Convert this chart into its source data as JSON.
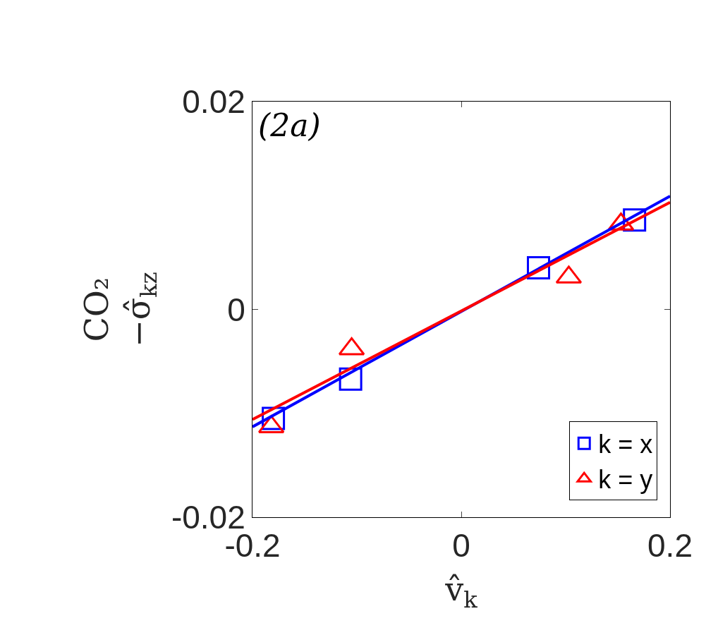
{
  "chart_data": {
    "type": "scatter",
    "xlabel": "v̂$_{k}$",
    "ylabel": "CO₂\n−σ̂$_{kz}$",
    "annotations": [
      "(2a)"
    ],
    "xlim": [
      -0.2,
      0.2
    ],
    "xticks": [
      -0.2,
      0,
      0.2
    ],
    "ylim": [
      -0.02,
      0.02
    ],
    "yticks": [
      -0.02,
      0,
      0.02
    ],
    "legend": "bottom right",
    "series": [
      {
        "name": "k = x",
        "color": "#0000ff",
        "marker": "square",
        "x": [
          -0.18,
          -0.106,
          0.074,
          0.166
        ],
        "values": [
          -0.0105,
          -0.0067,
          0.004,
          0.0086
        ]
      },
      {
        "name": "k = y",
        "color": "#ff0000",
        "marker": "triangle",
        "x": [
          -0.182,
          -0.105,
          0.103,
          0.153
        ],
        "values": [
          -0.0113,
          -0.0038,
          0.0031,
          0.0082
        ]
      },
      {
        "type": "line",
        "color": "#0000ff",
        "x": [
          -0.2,
          0.2
        ],
        "values": [
          -0.0113,
          0.0109
        ]
      },
      {
        "type": "line",
        "color": "#ff0000",
        "x": [
          -0.2,
          0.2
        ],
        "values": [
          -0.0106,
          0.0103
        ]
      }
    ]
  }
}
